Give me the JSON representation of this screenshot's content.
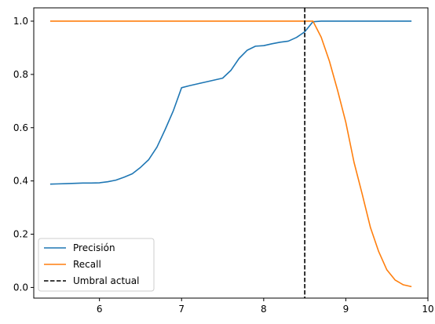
{
  "chart_data": {
    "type": "line",
    "title": "",
    "xlabel": "",
    "ylabel": "",
    "xlim": [
      5.2,
      10.0
    ],
    "ylim": [
      -0.04,
      1.05
    ],
    "x_ticks": [
      6,
      7,
      8,
      9,
      10
    ],
    "x_tick_labels": [
      "6",
      "7",
      "8",
      "9",
      "10"
    ],
    "y_ticks": [
      0.0,
      0.2,
      0.4,
      0.6,
      0.8,
      1.0
    ],
    "y_tick_labels": [
      "0.0",
      "0.2",
      "0.4",
      "0.6",
      "0.8",
      "1.0"
    ],
    "grid": false,
    "legend_position": "lower-left",
    "series": [
      {
        "name": "Precisión",
        "color": "#1f77b4",
        "points": [
          [
            5.4,
            0.388
          ],
          [
            5.5,
            0.389
          ],
          [
            5.6,
            0.39
          ],
          [
            5.7,
            0.391
          ],
          [
            5.8,
            0.392
          ],
          [
            5.9,
            0.392
          ],
          [
            6.0,
            0.393
          ],
          [
            6.1,
            0.397
          ],
          [
            6.2,
            0.403
          ],
          [
            6.3,
            0.414
          ],
          [
            6.4,
            0.427
          ],
          [
            6.5,
            0.451
          ],
          [
            6.6,
            0.48
          ],
          [
            6.7,
            0.527
          ],
          [
            6.8,
            0.593
          ],
          [
            6.9,
            0.664
          ],
          [
            7.0,
            0.75
          ],
          [
            7.1,
            0.758
          ],
          [
            7.2,
            0.765
          ],
          [
            7.3,
            0.772
          ],
          [
            7.4,
            0.779
          ],
          [
            7.5,
            0.786
          ],
          [
            7.6,
            0.815
          ],
          [
            7.7,
            0.86
          ],
          [
            7.8,
            0.891
          ],
          [
            7.9,
            0.906
          ],
          [
            8.0,
            0.908
          ],
          [
            8.1,
            0.915
          ],
          [
            8.2,
            0.921
          ],
          [
            8.3,
            0.925
          ],
          [
            8.4,
            0.939
          ],
          [
            8.5,
            0.96
          ],
          [
            8.6,
            0.998
          ],
          [
            8.7,
            1.0
          ],
          [
            9.0,
            1.0
          ],
          [
            9.5,
            1.0
          ],
          [
            9.8,
            1.0
          ]
        ]
      },
      {
        "name": "Recall",
        "color": "#ff7f0e",
        "points": [
          [
            5.4,
            1.0
          ],
          [
            6.0,
            1.0
          ],
          [
            7.0,
            1.0
          ],
          [
            8.0,
            1.0
          ],
          [
            8.5,
            1.0
          ],
          [
            8.6,
            1.0
          ],
          [
            8.7,
            0.94
          ],
          [
            8.8,
            0.85
          ],
          [
            8.9,
            0.74
          ],
          [
            9.0,
            0.62
          ],
          [
            9.1,
            0.47
          ],
          [
            9.2,
            0.35
          ],
          [
            9.3,
            0.225
          ],
          [
            9.4,
            0.135
          ],
          [
            9.5,
            0.066
          ],
          [
            9.6,
            0.028
          ],
          [
            9.7,
            0.01
          ],
          [
            9.8,
            0.003
          ]
        ]
      },
      {
        "name": "Umbral actual",
        "color": "#000000",
        "dashed": true,
        "x": 8.5
      }
    ]
  }
}
